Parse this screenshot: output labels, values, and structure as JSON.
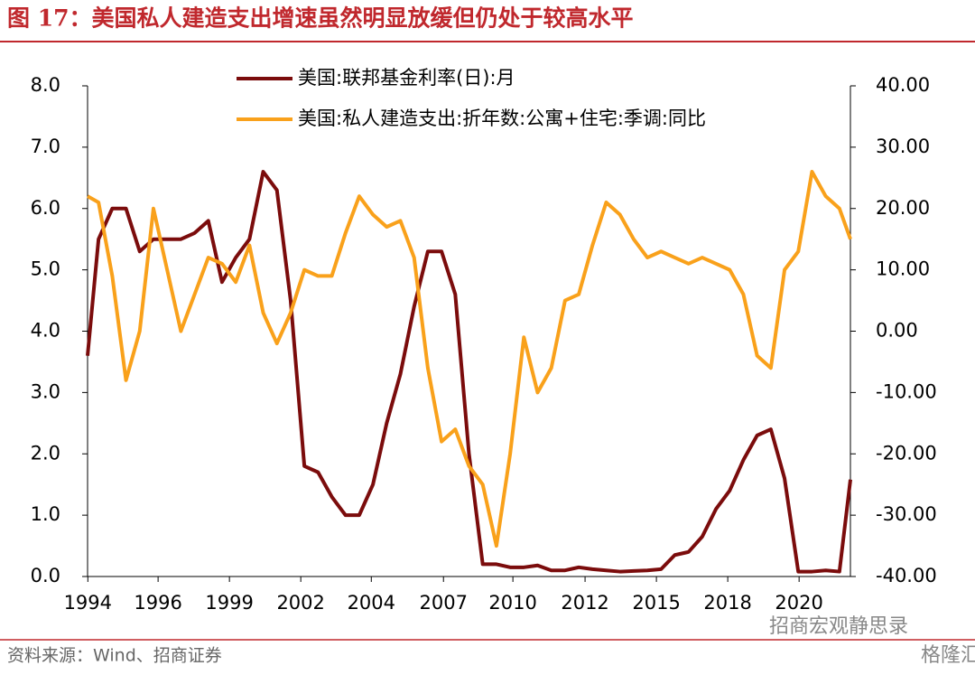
{
  "header": {
    "title": "图 17：美国私人建造支出增速虽然明显放缓但仍处于较高水平"
  },
  "chart_data": {
    "type": "line",
    "x": [
      1994.6,
      1995.0,
      1995.5,
      1996.0,
      1996.5,
      1997.0,
      1997.5,
      1998.0,
      1998.5,
      1999.0,
      1999.5,
      2000.0,
      2000.5,
      2001.0,
      2001.5,
      2002.0,
      2002.5,
      2003.0,
      2003.5,
      2004.0,
      2004.5,
      2005.0,
      2005.5,
      2006.0,
      2006.5,
      2007.0,
      2007.5,
      2008.0,
      2008.5,
      2009.0,
      2009.5,
      2010.0,
      2010.5,
      2011.0,
      2011.5,
      2012.0,
      2012.5,
      2013.0,
      2013.5,
      2014.0,
      2014.5,
      2015.0,
      2015.5,
      2016.0,
      2016.5,
      2017.0,
      2017.5,
      2018.0,
      2018.5,
      2019.0,
      2019.5,
      2020.0,
      2020.5,
      2021.0,
      2021.5,
      2022.0,
      2022.4
    ],
    "series": [
      {
        "name": "美国:联邦基金利率(日):月",
        "color": "#7b0c0c",
        "axis": "y",
        "values": [
          3.6,
          5.5,
          6.0,
          6.0,
          5.3,
          5.5,
          5.5,
          5.5,
          5.6,
          5.8,
          4.8,
          5.2,
          5.5,
          6.6,
          6.3,
          4.5,
          1.8,
          1.7,
          1.3,
          1.0,
          1.0,
          1.5,
          2.5,
          3.3,
          4.4,
          5.3,
          5.3,
          4.6,
          2.0,
          0.2,
          0.2,
          0.15,
          0.15,
          0.18,
          0.1,
          0.1,
          0.15,
          0.12,
          0.1,
          0.08,
          0.09,
          0.1,
          0.12,
          0.35,
          0.4,
          0.65,
          1.1,
          1.4,
          1.9,
          2.3,
          2.4,
          1.6,
          0.08,
          0.08,
          0.1,
          0.08,
          1.58
        ]
      },
      {
        "name": "美国:私人建造支出:折年数:公寓+住宅:季调:同比",
        "color": "#f9a11b",
        "axis": "y2",
        "values": [
          22,
          21,
          9,
          -8,
          0,
          20,
          10,
          0,
          6,
          12,
          11,
          8,
          14,
          3,
          -2,
          3,
          10,
          9,
          9,
          16,
          22,
          19,
          17,
          18,
          12,
          -6,
          -18,
          -16,
          -22,
          -25,
          -35,
          -20,
          -1,
          -10,
          -6,
          5,
          6,
          14,
          21,
          19,
          15,
          12,
          13,
          12,
          11,
          12,
          11,
          10,
          6,
          -4,
          -6,
          10,
          13,
          26,
          22,
          20,
          15
        ]
      }
    ],
    "xlim": [
      1994.6,
      2022.4
    ],
    "xticks": [
      {
        "value": 1994.61,
        "label": "1994"
      },
      {
        "value": 1997.17,
        "label": "1996"
      },
      {
        "value": 1999.77,
        "label": "1999"
      },
      {
        "value": 2002.37,
        "label": "2002"
      },
      {
        "value": 2004.94,
        "label": "2004"
      },
      {
        "value": 2007.57,
        "label": "2007"
      },
      {
        "value": 2010.1,
        "label": "2010"
      },
      {
        "value": 2012.73,
        "label": "2012"
      },
      {
        "value": 2015.33,
        "label": "2015"
      },
      {
        "value": 2017.93,
        "label": "2018"
      },
      {
        "value": 2020.53,
        "label": "2020"
      }
    ],
    "ylim": [
      0,
      8
    ],
    "yticks": [
      {
        "value": 0,
        "label": "0.0"
      },
      {
        "value": 1,
        "label": "1.0"
      },
      {
        "value": 2,
        "label": "2.0"
      },
      {
        "value": 3,
        "label": "3.0"
      },
      {
        "value": 4,
        "label": "4.0"
      },
      {
        "value": 5,
        "label": "5.0"
      },
      {
        "value": 6,
        "label": "6.0"
      },
      {
        "value": 7,
        "label": "7.0"
      },
      {
        "value": 8,
        "label": "8.0"
      }
    ],
    "y2lim": [
      -40,
      40
    ],
    "y2ticks": [
      {
        "value": -40,
        "label": "-40.00"
      },
      {
        "value": -30,
        "label": "-30.00"
      },
      {
        "value": -20,
        "label": "-20.00"
      },
      {
        "value": -10,
        "label": "-10.00"
      },
      {
        "value": 0,
        "label": "0.00"
      },
      {
        "value": 10,
        "label": "10.00"
      },
      {
        "value": 20,
        "label": "20.00"
      },
      {
        "value": 30,
        "label": "30.00"
      },
      {
        "value": 40,
        "label": "40.00"
      }
    ],
    "legend": "upper center",
    "grid": false
  },
  "footer": {
    "source": "资料来源：Wind、招商证券",
    "watermark": "招商宏观静思录",
    "logo": "格隆汇"
  }
}
